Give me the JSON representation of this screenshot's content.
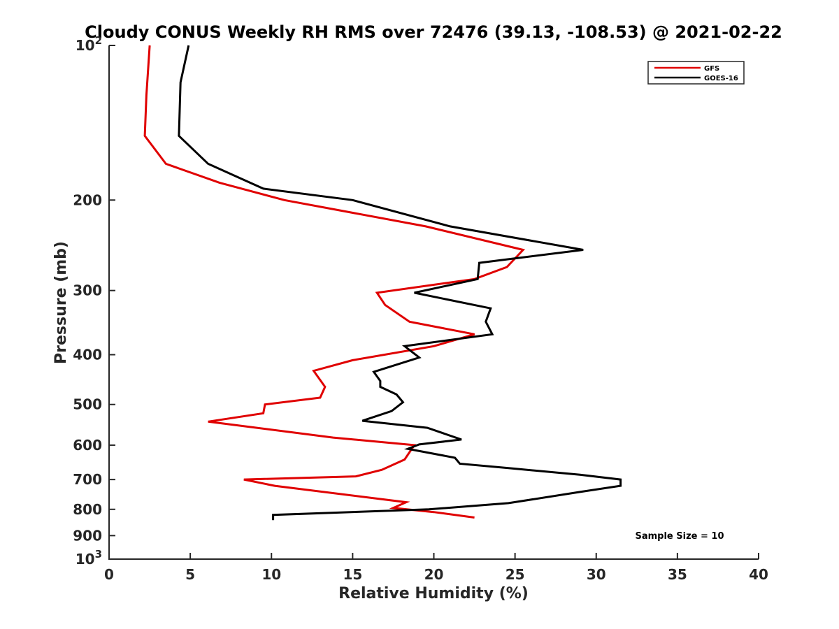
{
  "chart_data": {
    "type": "line",
    "title": "Cloudy CONUS Weekly RH RMS over 72476 (39.13, -108.53) @ 2021-02-22",
    "xlabel": "Relative Humidity (%)",
    "ylabel": "Pressure (mb)",
    "xlim": [
      0,
      40
    ],
    "ylim": [
      100,
      1000
    ],
    "y_scale": "log",
    "y_reversed": true,
    "grid": false,
    "legend_position": "top-right",
    "x_ticks": [
      "0",
      "5",
      "10",
      "15",
      "20",
      "25",
      "30",
      "35",
      "40"
    ],
    "y_ticks": [
      {
        "value": 100,
        "base": "10",
        "exp": "2"
      },
      {
        "value": 200,
        "label": "200"
      },
      {
        "value": 300,
        "label": "300"
      },
      {
        "value": 400,
        "label": "400"
      },
      {
        "value": 500,
        "label": "500"
      },
      {
        "value": 600,
        "label": "600"
      },
      {
        "value": 700,
        "label": "700"
      },
      {
        "value": 800,
        "label": "800"
      },
      {
        "value": 900,
        "label": "900"
      },
      {
        "value": 1000,
        "base": "10",
        "exp": "3"
      }
    ],
    "annotation": "Sample Size = 10",
    "series": [
      {
        "name": "GFS",
        "color": "#e00000",
        "points": [
          [
            2.5,
            100
          ],
          [
            2.3,
            125
          ],
          [
            2.2,
            150
          ],
          [
            3.5,
            170
          ],
          [
            6.8,
            185
          ],
          [
            10.8,
            200
          ],
          [
            19.5,
            225
          ],
          [
            25.5,
            250
          ],
          [
            24.5,
            270
          ],
          [
            22.5,
            285
          ],
          [
            16.5,
            303
          ],
          [
            17.0,
            320
          ],
          [
            18.5,
            345
          ],
          [
            22.5,
            365
          ],
          [
            20.0,
            385
          ],
          [
            15.0,
            410
          ],
          [
            12.6,
            430
          ],
          [
            13.3,
            462
          ],
          [
            13.0,
            485
          ],
          [
            9.6,
            500
          ],
          [
            9.5,
            520
          ],
          [
            6.1,
            540
          ],
          [
            13.8,
            580
          ],
          [
            18.8,
            600
          ],
          [
            18.2,
            640
          ],
          [
            16.8,
            670
          ],
          [
            15.2,
            690
          ],
          [
            8.3,
            700
          ],
          [
            10.2,
            720
          ],
          [
            18.3,
            775
          ],
          [
            17.5,
            795
          ],
          [
            20.0,
            810
          ],
          [
            22.5,
            830
          ]
        ]
      },
      {
        "name": "GOES-16",
        "color": "#000000",
        "points": [
          [
            4.9,
            100
          ],
          [
            4.4,
            118
          ],
          [
            4.3,
            150
          ],
          [
            6.1,
            170
          ],
          [
            9.5,
            190
          ],
          [
            15.0,
            200
          ],
          [
            21.0,
            225
          ],
          [
            29.2,
            250
          ],
          [
            22.8,
            265
          ],
          [
            22.7,
            285
          ],
          [
            18.8,
            303
          ],
          [
            23.5,
            325
          ],
          [
            23.2,
            345
          ],
          [
            23.6,
            365
          ],
          [
            18.2,
            385
          ],
          [
            19.1,
            405
          ],
          [
            16.3,
            432
          ],
          [
            16.7,
            450
          ],
          [
            16.7,
            462
          ],
          [
            17.7,
            478
          ],
          [
            18.1,
            495
          ],
          [
            17.4,
            515
          ],
          [
            15.6,
            538
          ],
          [
            19.6,
            555
          ],
          [
            21.7,
            585
          ],
          [
            19.1,
            598
          ],
          [
            18.4,
            610
          ],
          [
            21.3,
            635
          ],
          [
            21.6,
            652
          ],
          [
            24.6,
            665
          ],
          [
            29.0,
            685
          ],
          [
            31.5,
            700
          ],
          [
            31.5,
            720
          ],
          [
            29.0,
            740
          ],
          [
            24.6,
            778
          ],
          [
            19.7,
            800
          ],
          [
            10.1,
            820
          ],
          [
            10.1,
            840
          ]
        ]
      }
    ]
  }
}
